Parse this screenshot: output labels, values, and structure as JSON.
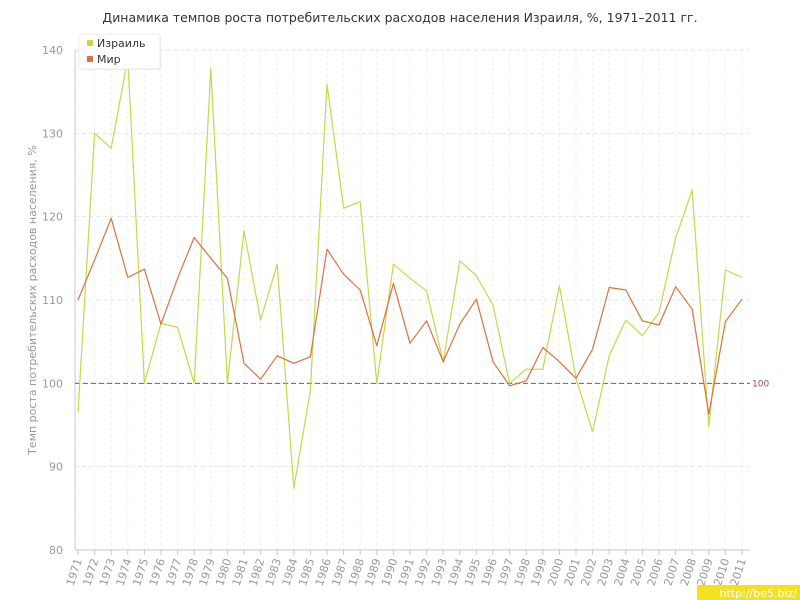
{
  "chart_data": {
    "type": "line",
    "title": "Динамика темпов роста потребительских расходов населения Израиля, %, 1971–2011 гг.",
    "xlabel": "",
    "ylabel": "Темп роста потребительских расходов населения, %",
    "categories": [
      "1971",
      "1972",
      "1973",
      "1974",
      "1975",
      "1976",
      "1977",
      "1978",
      "1979",
      "1980",
      "1981",
      "1982",
      "1983",
      "1984",
      "1985",
      "1986",
      "1987",
      "1988",
      "1989",
      "1990",
      "1991",
      "1992",
      "1993",
      "1994",
      "1995",
      "1996",
      "1997",
      "1998",
      "1999",
      "2000",
      "2001",
      "2002",
      "2003",
      "2004",
      "2005",
      "2006",
      "2007",
      "2008",
      "2009",
      "2010",
      "2011"
    ],
    "series": [
      {
        "name": "Израиль",
        "color": "#c2d94a",
        "values": [
          96.5,
          130.0,
          128.2,
          139.0,
          100.0,
          107.2,
          106.7,
          100.0,
          137.8,
          100.0,
          118.3,
          107.6,
          114.3,
          87.4,
          99.2,
          135.9,
          121.0,
          121.8,
          100.0,
          114.3,
          112.6,
          111.1,
          102.6,
          114.7,
          112.9,
          109.4,
          100.0,
          101.7,
          101.7,
          111.7,
          100.6,
          94.2,
          103.3,
          107.6,
          105.7,
          108.5,
          117.4,
          123.2,
          94.8,
          113.6,
          112.7
        ]
      },
      {
        "name": "Мир",
        "color": "#e0703e",
        "values": [
          110.0,
          114.8,
          119.8,
          112.7,
          113.7,
          107.1,
          112.6,
          117.5,
          115.0,
          112.6,
          102.4,
          100.5,
          103.3,
          102.4,
          103.2,
          116.1,
          113.1,
          111.2,
          104.5,
          112.0,
          104.8,
          107.5,
          102.6,
          107.1,
          110.1,
          102.6,
          99.7,
          100.3,
          104.3,
          102.6,
          100.6,
          104.1,
          111.5,
          111.2,
          107.5,
          107.0,
          111.6,
          108.9,
          96.3,
          107.4,
          110.1
        ]
      }
    ],
    "ylim": [
      80,
      140
    ],
    "yticks": [
      80,
      90,
      100,
      110,
      120,
      130,
      140
    ],
    "reference_line": {
      "value": 100,
      "label": "100",
      "color": "#9e4a5e",
      "style": "dashed"
    },
    "grid": true,
    "legend_position": "top-left"
  },
  "watermark": {
    "text": "http://be5.biz/",
    "background": "#f5e020"
  }
}
